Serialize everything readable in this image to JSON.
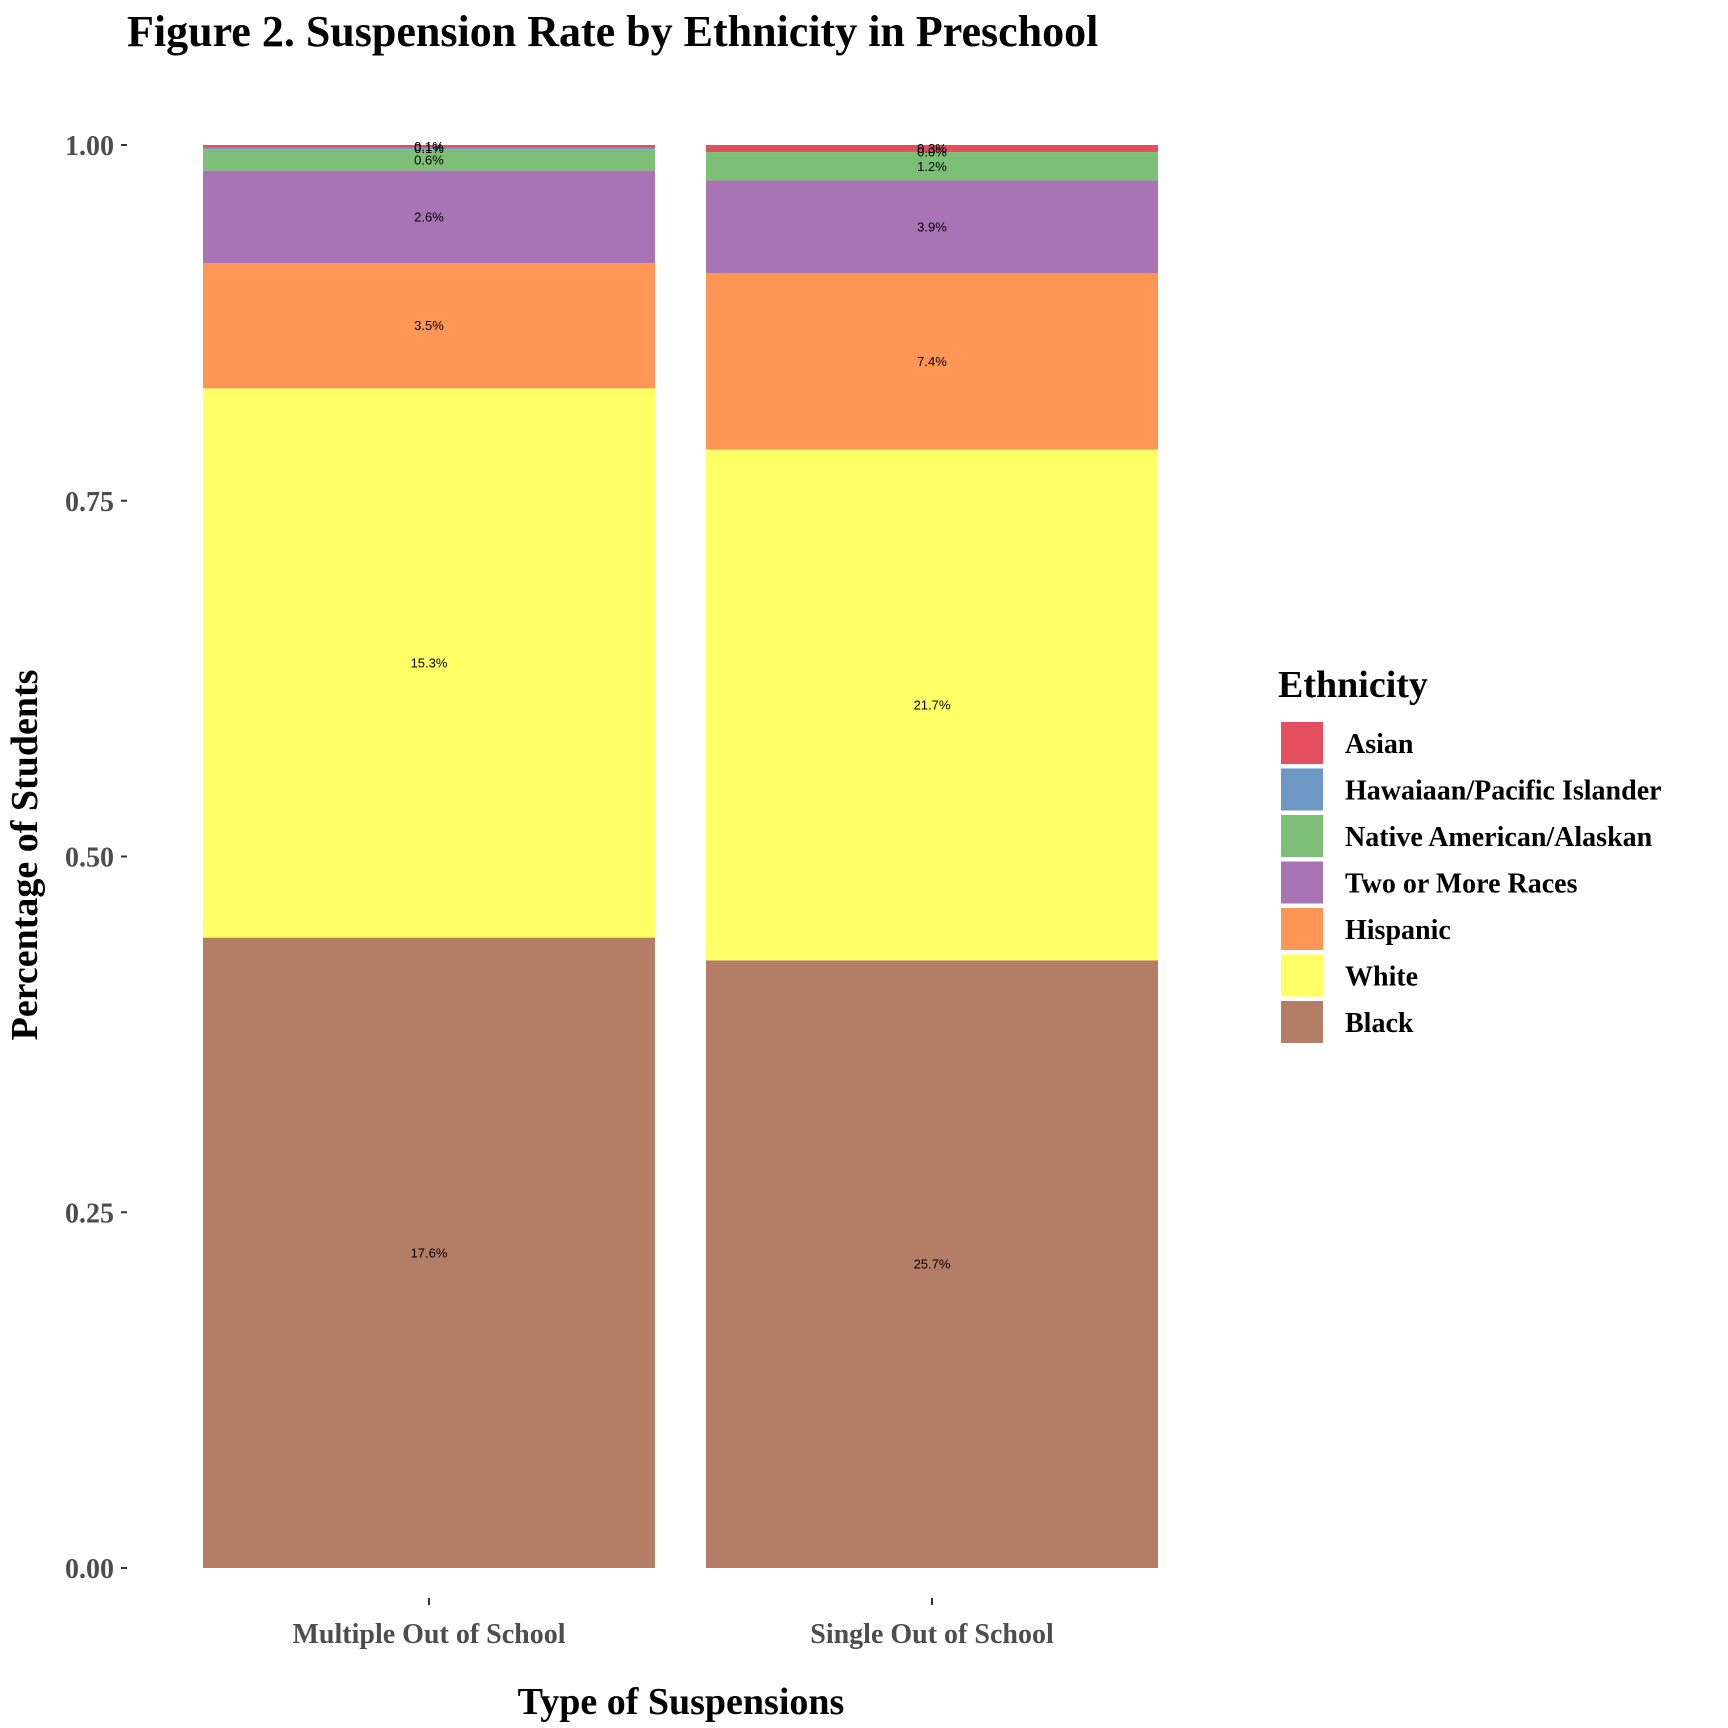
{
  "chart_data": {
    "type": "bar",
    "stacked": true,
    "title": "Figure 2. Suspension Rate by Ethnicity in Preschool",
    "xlabel": "Type of Suspensions",
    "ylabel": "Percentage of Students",
    "ylim": [
      0,
      1
    ],
    "yticks": [
      "0.00",
      "0.25",
      "0.50",
      "0.75",
      "1.00"
    ],
    "categories": [
      "Multiple Out of School",
      "Single Out of School"
    ],
    "grid": false,
    "legend": {
      "title": "Ethnicity",
      "position": "right",
      "entries": [
        "Asian",
        "Hawaiaan/Pacific Islander",
        "Native American/Alaskan",
        "Two or More Races",
        "Hispanic",
        "White",
        "Black"
      ]
    },
    "series": [
      {
        "name": "Black",
        "color": "#b47d66",
        "values": [
          0.443,
          0.427
        ],
        "labels": [
          "17.6%",
          "25.7%"
        ]
      },
      {
        "name": "White",
        "color": "#ffff66",
        "values": [
          0.386,
          0.359
        ],
        "labels": [
          "15.3%",
          "21.7%"
        ]
      },
      {
        "name": "Hispanic",
        "color": "#ff9655",
        "values": [
          0.088,
          0.124
        ],
        "labels": [
          "3.5%",
          "7.4%"
        ]
      },
      {
        "name": "Two or More Races",
        "color": "#a874b4",
        "values": [
          0.065,
          0.065
        ],
        "labels": [
          "2.6%",
          "3.9%"
        ]
      },
      {
        "name": "Native American/Alaskan",
        "color": "#7dbf77",
        "values": [
          0.015,
          0.02
        ],
        "labels": [
          "0.6%",
          "1.2%"
        ]
      },
      {
        "name": "Hawaiaan/Pacific Islander",
        "color": "#6d97c4",
        "values": [
          0.0012,
          0.0
        ],
        "labels": [
          "0.1%",
          "0.0%"
        ]
      },
      {
        "name": "Asian",
        "color": "#e34f5f",
        "values": [
          0.0018,
          0.005
        ],
        "labels": [
          "0.1%",
          "0.3%"
        ]
      }
    ]
  }
}
